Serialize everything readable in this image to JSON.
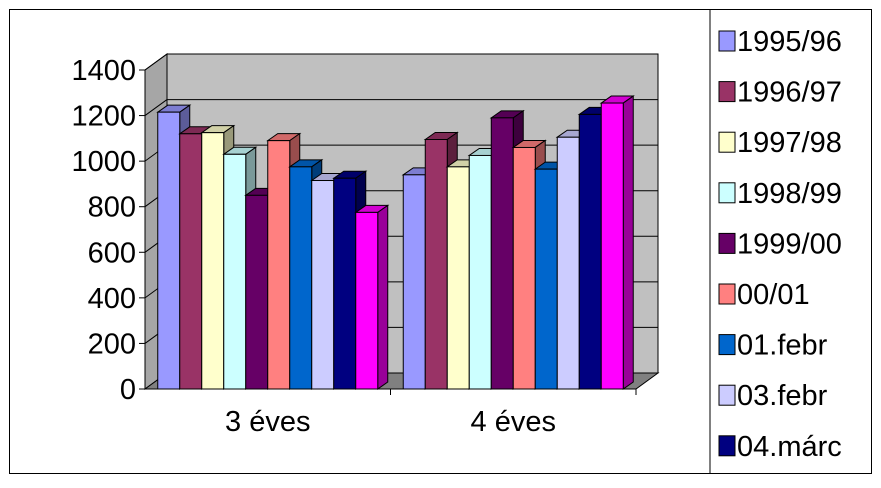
{
  "chart_data": {
    "type": "bar",
    "title": "",
    "xlabel": "",
    "ylabel": "",
    "categories": [
      "3 éves",
      "4 éves"
    ],
    "ylim": [
      0,
      1400
    ],
    "yticks": [
      "0",
      "200",
      "400",
      "600",
      "800",
      "1000",
      "1200",
      "1400"
    ],
    "grid": true,
    "legend_position": "right",
    "three_d": true,
    "series": [
      {
        "name": "1995/96",
        "color": "#9999ff",
        "values": [
          1215,
          940
        ]
      },
      {
        "name": "1996/97",
        "color": "#993366",
        "values": [
          1120,
          1095
        ]
      },
      {
        "name": "1997/98",
        "color": "#ffffcc",
        "values": [
          1125,
          975
        ]
      },
      {
        "name": "1998/99",
        "color": "#ccffff",
        "values": [
          1030,
          1025
        ]
      },
      {
        "name": "1999/00",
        "color": "#660066",
        "values": [
          850,
          1190
        ]
      },
      {
        "name": "00/01",
        "color": "#ff8080",
        "values": [
          1090,
          1060
        ]
      },
      {
        "name": "01.febr",
        "color": "#0066cc",
        "values": [
          975,
          965
        ]
      },
      {
        "name": "03.febr",
        "color": "#ccccff",
        "values": [
          915,
          1105
        ]
      },
      {
        "name": "04.márc",
        "color": "#000080",
        "values": [
          925,
          1205
        ]
      },
      {
        "name": "",
        "color": "#ff00ff",
        "values": [
          775,
          1255
        ]
      }
    ]
  }
}
